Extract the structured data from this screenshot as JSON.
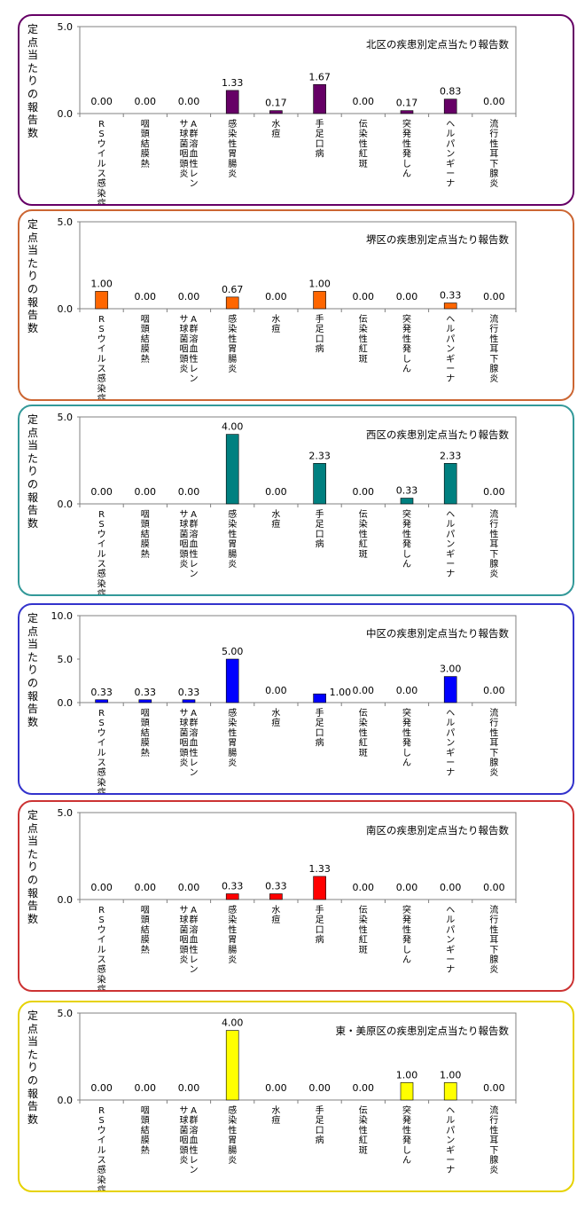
{
  "chart_data": [
    {
      "type": "bar",
      "title": "北区の疾患別定点当たり報告数",
      "ylabel": "定点当たりの報告数",
      "ylim": [
        0,
        5
      ],
      "yticks": [
        "0.0",
        "5.0"
      ],
      "color": "#660066",
      "border": "#660066",
      "categories": [
        "RSウイルス感染症",
        "咽頭結膜熱",
        "A群溶血性レンサ球菌咽頭炎",
        "感染性胃腸炎",
        "水痘",
        "手足口病",
        "伝染性紅斑",
        "突発性発しん",
        "ヘルパンギーナ",
        "流行性耳下腺炎"
      ],
      "values": [
        0,
        0,
        0,
        1.33,
        0.17,
        1.67,
        0,
        0.17,
        0.83,
        0
      ],
      "labels": [
        "0.00",
        "0.00",
        "0.00",
        "1.33",
        "0.17",
        "1.67",
        "0.00",
        "0.17",
        "0.83",
        "0.00"
      ]
    },
    {
      "type": "bar",
      "title": "堺区の疾患別定点当たり報告数",
      "ylabel": "定点当たりの報告数",
      "ylim": [
        0,
        5
      ],
      "yticks": [
        "0.0",
        "5.0"
      ],
      "color": "#ff6600",
      "border": "#cc6633",
      "categories": [
        "RSウイルス感染症",
        "咽頭結膜熱",
        "A群溶血性レンサ球菌咽頭炎",
        "感染性胃腸炎",
        "水痘",
        "手足口病",
        "伝染性紅斑",
        "突発性発しん",
        "ヘルパンギーナ",
        "流行性耳下腺炎"
      ],
      "values": [
        1.0,
        0,
        0,
        0.67,
        0,
        1.0,
        0,
        0,
        0.33,
        0
      ],
      "labels": [
        "1.00",
        "0.00",
        "0.00",
        "0.67",
        "0.00",
        "1.00",
        "0.00",
        "0.00",
        "0.33",
        "0.00"
      ]
    },
    {
      "type": "bar",
      "title": "西区の疾患別定点当たり報告数",
      "ylabel": "定点当たりの報告数",
      "ylim": [
        0,
        5
      ],
      "yticks": [
        "0.0",
        "5.0"
      ],
      "color": "#008080",
      "border": "#339999",
      "categories": [
        "RSウイルス感染症",
        "咽頭結膜熱",
        "A群溶血性レンサ球菌咽頭炎",
        "感染性胃腸炎",
        "水痘",
        "手足口病",
        "伝染性紅斑",
        "突発性発しん",
        "ヘルパンギーナ",
        "流行性耳下腺炎"
      ],
      "values": [
        0,
        0,
        0,
        4.0,
        0,
        2.33,
        0,
        0.33,
        2.33,
        0
      ],
      "labels": [
        "0.00",
        "0.00",
        "0.00",
        "4.00",
        "0.00",
        "2.33",
        "0.00",
        "0.33",
        "2.33",
        "0.00"
      ]
    },
    {
      "type": "bar",
      "title": "中区の疾患別定点当たり報告数",
      "ylabel": "定点当たりの報告数",
      "ylim": [
        0,
        10
      ],
      "yticks": [
        "0.0",
        "5.0",
        "10.0"
      ],
      "color": "#0000ff",
      "border": "#3333cc",
      "categories": [
        "RSウイルス感染症",
        "咽頭結膜熱",
        "A群溶血性レンサ球菌咽頭炎",
        "感染性胃腸炎",
        "水痘",
        "手足口病",
        "伝染性紅斑",
        "突発性発しん",
        "ヘルパンギーナ",
        "流行性耳下腺炎"
      ],
      "values": [
        0.33,
        0.33,
        0.33,
        5.0,
        0,
        1.0,
        0,
        0,
        3.0,
        0
      ],
      "labels": [
        "0.33",
        "0.33",
        "0.33",
        "5.00",
        "0.00",
        "1.00",
        "0.00",
        "0.00",
        "3.00",
        "0.00"
      ]
    },
    {
      "type": "bar",
      "title": "南区の疾患別定点当たり報告数",
      "ylabel": "定点当たりの報告数",
      "ylim": [
        0,
        5
      ],
      "yticks": [
        "0.0",
        "5.0"
      ],
      "color": "#ff0000",
      "border": "#cc3333",
      "categories": [
        "RSウイルス感染症",
        "咽頭結膜熱",
        "A群溶血性レンサ球菌咽頭炎",
        "感染性胃腸炎",
        "水痘",
        "手足口病",
        "伝染性紅斑",
        "突発性発しん",
        "ヘルパンギーナ",
        "流行性耳下腺炎"
      ],
      "values": [
        0,
        0,
        0,
        0.33,
        0.33,
        1.33,
        0,
        0,
        0,
        0
      ],
      "labels": [
        "0.00",
        "0.00",
        "0.00",
        "0.33",
        "0.33",
        "1.33",
        "0.00",
        "0.00",
        "0.00",
        "0.00"
      ]
    },
    {
      "type": "bar",
      "title": "東・美原区の疾患別定点当たり報告数",
      "ylabel": "定点当たりの報告数",
      "ylim": [
        0,
        5
      ],
      "yticks": [
        "0.0",
        "5.0"
      ],
      "color": "#ffff00",
      "border": "#e6d200",
      "categories": [
        "RSウイルス感染症",
        "咽頭結膜熱",
        "A群溶血性レンサ球菌咽頭炎",
        "感染性胃腸炎",
        "水痘",
        "手足口病",
        "伝染性紅斑",
        "突発性発しん",
        "ヘルパンギーナ",
        "流行性耳下腺炎"
      ],
      "values": [
        0,
        0,
        0,
        4.0,
        0,
        0,
        0,
        1.0,
        1.0,
        0
      ],
      "labels": [
        "0.00",
        "0.00",
        "0.00",
        "4.00",
        "0.00",
        "0.00",
        "0.00",
        "1.00",
        "1.00",
        "0.00"
      ]
    }
  ]
}
